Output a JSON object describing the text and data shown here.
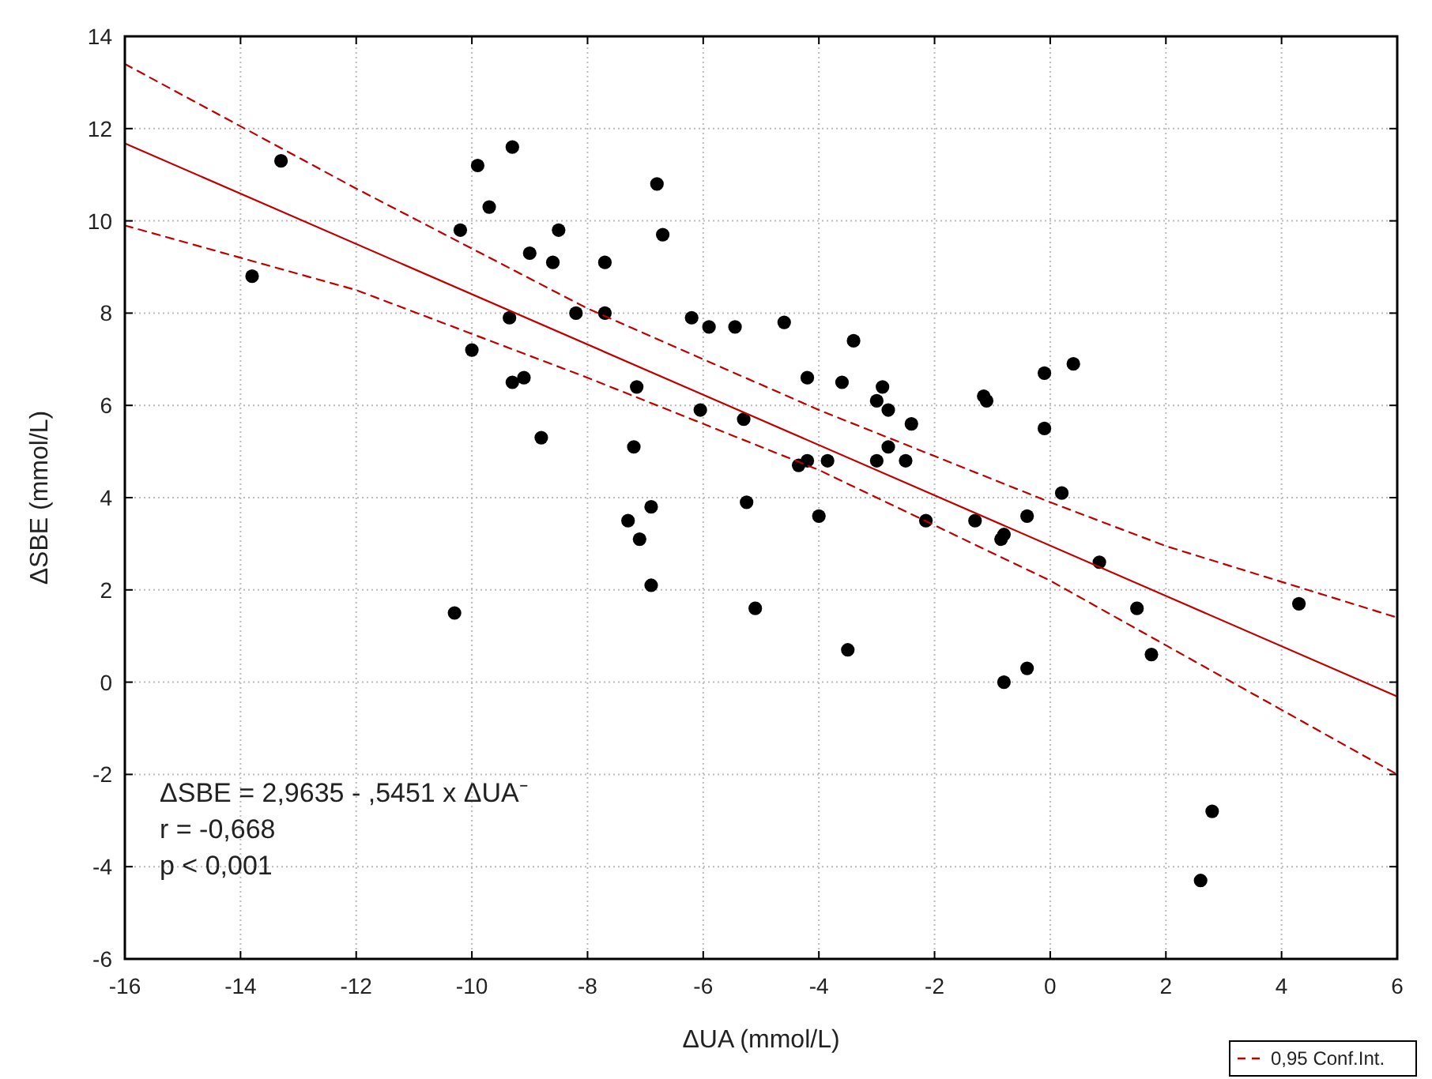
{
  "chart_data": {
    "type": "scatter",
    "xlabel": "ΔUA (mmol/L)",
    "ylabel": "ΔSBE (mmol/L)",
    "xlim": [
      -16,
      6
    ],
    "xticks": [
      -16,
      -14,
      -12,
      -10,
      -8,
      -6,
      -4,
      -2,
      0,
      2,
      4,
      6
    ],
    "ylim": [
      -6,
      14
    ],
    "yticks": [
      -6,
      -4,
      -2,
      0,
      2,
      4,
      6,
      8,
      10,
      12,
      14
    ],
    "grid": true,
    "legend": "bottom right",
    "marker": "circle",
    "annotations": [
      "ΔSBE = 2,9635 - ,5451  x ΔUA⁻",
      "r = -0,668",
      "p < 0,001"
    ],
    "series": [
      {
        "type": "scatter",
        "color": "#000000",
        "x": [
          -13.8,
          -13.3,
          -10.3,
          -10.2,
          -9.9,
          -10.0,
          -9.7,
          -9.3,
          -9.35,
          -9.3,
          -9.1,
          -9.0,
          -8.8,
          -8.6,
          -8.5,
          -8.2,
          -7.7,
          -7.7,
          -7.3,
          -7.2,
          -7.15,
          -7.1,
          -6.9,
          -6.9,
          -6.8,
          -6.7,
          -6.2,
          -6.05,
          -5.9,
          -5.45,
          -5.3,
          -5.25,
          -4.6,
          -3.4,
          -4.2,
          -3.6,
          -2.9,
          -3.0,
          -2.8,
          -2.4,
          -4.35,
          -4.2,
          -3.85,
          -3.0,
          -2.8,
          -2.5,
          -4.0,
          -2.15,
          -5.1,
          -3.5,
          -1.3,
          -1.15,
          -1.1,
          -0.1,
          0.4,
          -0.1,
          0.2,
          -0.4,
          -0.85,
          -0.8,
          -0.8,
          -0.4,
          0.85,
          1.5,
          1.75,
          4.3,
          2.8,
          2.6
        ],
        "values": [
          8.8,
          11.3,
          1.5,
          9.8,
          11.2,
          7.2,
          10.3,
          11.6,
          7.9,
          6.5,
          6.6,
          9.3,
          5.3,
          9.1,
          9.8,
          8.0,
          9.1,
          8.0,
          3.5,
          5.1,
          6.4,
          3.1,
          3.8,
          2.1,
          10.8,
          9.7,
          7.9,
          5.9,
          7.7,
          7.7,
          5.7,
          3.9,
          7.8,
          7.4,
          6.6,
          6.5,
          6.4,
          6.1,
          5.9,
          5.6,
          4.7,
          4.8,
          4.8,
          4.8,
          5.1,
          4.8,
          3.6,
          3.5,
          1.6,
          0.7,
          3.5,
          6.2,
          6.1,
          6.7,
          6.9,
          5.5,
          4.1,
          3.6,
          3.1,
          3.2,
          0.0,
          0.3,
          2.6,
          1.6,
          0.6,
          1.7,
          -2.8,
          -4.3
        ]
      },
      {
        "type": "line",
        "color": "#c00000",
        "line_style": "solid",
        "marker": "none",
        "x": [
          -16,
          6
        ],
        "values": [
          11.68,
          -0.31
        ]
      },
      {
        "type": "line",
        "name": "0,95 Conf.Int.",
        "color": "#c00000",
        "line_style": "dashed",
        "marker": "none",
        "x": [
          -16,
          -12,
          -8,
          -4,
          0,
          2,
          6
        ],
        "values": [
          13.4,
          10.7,
          8.1,
          5.9,
          3.9,
          2.95,
          1.4
        ]
      },
      {
        "type": "line",
        "color": "#c00000",
        "line_style": "dashed",
        "marker": "none",
        "x": [
          -16,
          -12,
          -8,
          -4,
          0,
          2,
          6
        ],
        "values": [
          9.9,
          8.5,
          6.6,
          4.6,
          2.2,
          0.8,
          -2.0
        ]
      }
    ]
  }
}
